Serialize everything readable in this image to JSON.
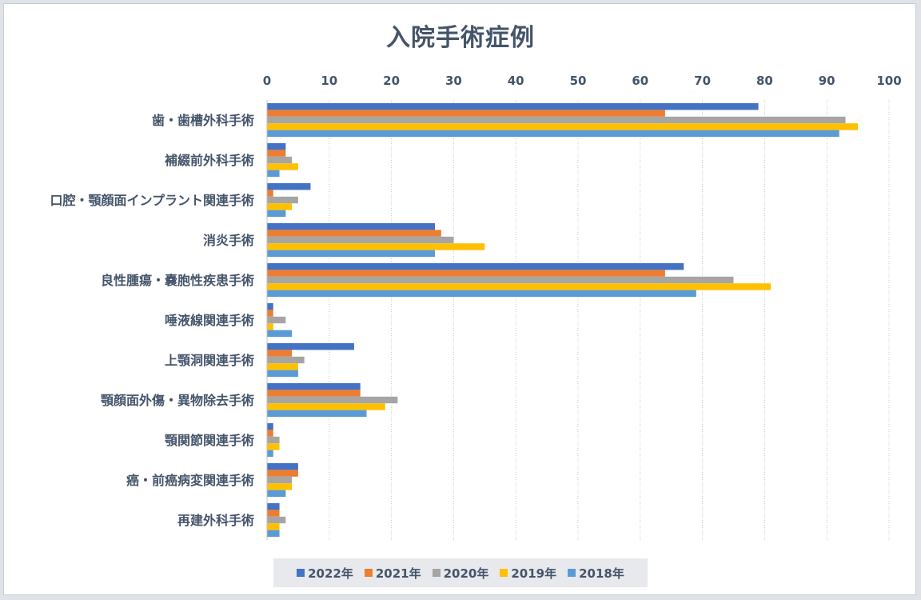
{
  "chart_data": {
    "type": "bar",
    "orientation": "horizontal",
    "title": "入院手術症例",
    "xlabel": "",
    "ylabel": "",
    "xlim": [
      0,
      100
    ],
    "ticks": [
      0,
      10,
      20,
      30,
      40,
      50,
      60,
      70,
      80,
      90,
      100
    ],
    "grid": "vertical-dotted",
    "legend_position": "bottom",
    "categories": [
      "歯・歯槽外科手術",
      "補綴前外科手術",
      "口腔・顎顔面インプラント関連手術",
      "消炎手術",
      "良性腫瘍・嚢胞性疾患手術",
      "唾液線関連手術",
      "上顎洞関連手術",
      "顎顔面外傷・異物除去手術",
      "顎関節関連手術",
      "癌・前癌病変関連手術",
      "再建外科手術"
    ],
    "series": [
      {
        "name": "2022年",
        "color": "#4472c4",
        "values": [
          79,
          3,
          7,
          27,
          67,
          1,
          14,
          15,
          1,
          5,
          2
        ]
      },
      {
        "name": "2021年",
        "color": "#ed7d31",
        "values": [
          64,
          3,
          1,
          28,
          64,
          1,
          4,
          15,
          1,
          5,
          2
        ]
      },
      {
        "name": "2020年",
        "color": "#a5a5a5",
        "values": [
          93,
          4,
          5,
          30,
          75,
          3,
          6,
          21,
          2,
          4,
          3
        ]
      },
      {
        "name": "2019年",
        "color": "#ffc000",
        "values": [
          95,
          5,
          4,
          35,
          81,
          1,
          5,
          19,
          2,
          4,
          2
        ]
      },
      {
        "name": "2018年",
        "color": "#5b9bd5",
        "values": [
          92,
          2,
          3,
          27,
          69,
          4,
          5,
          16,
          1,
          3,
          2
        ]
      }
    ]
  }
}
